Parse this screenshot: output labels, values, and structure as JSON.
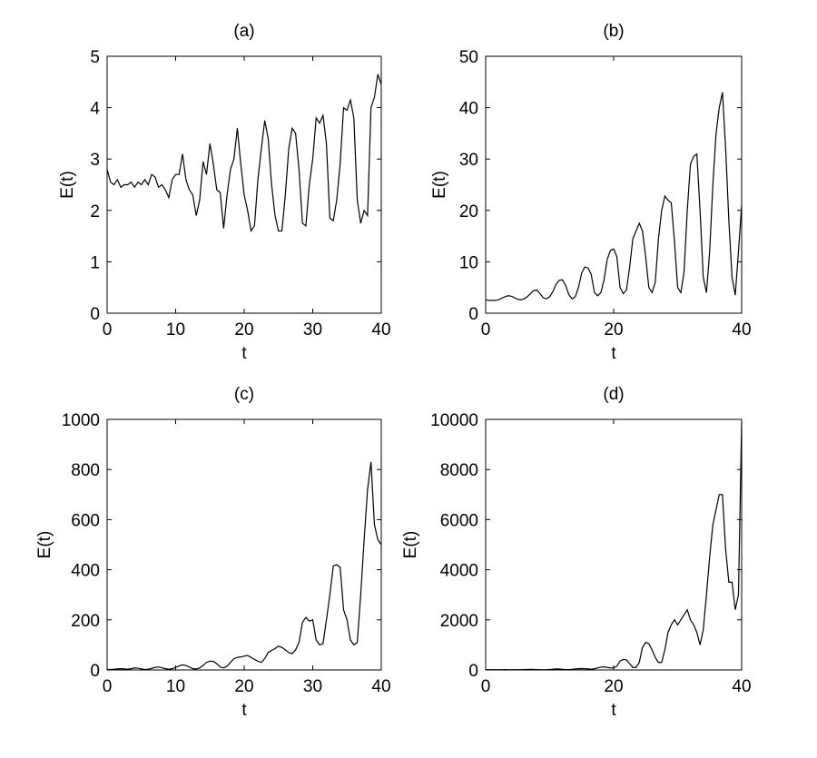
{
  "chart_data": [
    {
      "type": "line",
      "title": "(a)",
      "xlabel": "t",
      "ylabel": "E(t)",
      "color": "#000000",
      "xlim": [
        0,
        40
      ],
      "ylim": [
        0,
        5
      ],
      "xticks": [
        0,
        10,
        20,
        30,
        40
      ],
      "yticks": [
        0,
        1,
        2,
        3,
        4,
        5
      ],
      "x": [
        0,
        0.5,
        1,
        1.5,
        2,
        2.5,
        3,
        3.5,
        4,
        4.5,
        5,
        5.5,
        6,
        6.5,
        7,
        7.5,
        8,
        8.5,
        9,
        9.5,
        10,
        10.5,
        11,
        11.5,
        12,
        12.5,
        13,
        13.5,
        14,
        14.5,
        15,
        15.5,
        16,
        16.5,
        17,
        17.5,
        18,
        18.5,
        19,
        19.5,
        20,
        20.5,
        21,
        21.5,
        22,
        22.5,
        23,
        23.5,
        24,
        24.5,
        25,
        25.5,
        26,
        26.5,
        27,
        27.5,
        28,
        28.5,
        29,
        29.5,
        30,
        30.5,
        31,
        31.5,
        32,
        32.5,
        33,
        33.5,
        34,
        34.5,
        35,
        35.5,
        36,
        36.5,
        37,
        37.5,
        38,
        38.5,
        39,
        39.5,
        40
      ],
      "values": [
        2.8,
        2.55,
        2.5,
        2.6,
        2.45,
        2.5,
        2.5,
        2.55,
        2.45,
        2.55,
        2.5,
        2.6,
        2.5,
        2.7,
        2.65,
        2.45,
        2.5,
        2.4,
        2.25,
        2.6,
        2.7,
        2.7,
        3.1,
        2.6,
        2.4,
        2.3,
        1.9,
        2.2,
        2.95,
        2.7,
        3.3,
        2.9,
        2.4,
        2.35,
        1.65,
        2.3,
        2.8,
        3.0,
        3.6,
        2.9,
        2.3,
        2.0,
        1.6,
        1.7,
        2.6,
        3.2,
        3.75,
        3.4,
        2.5,
        1.9,
        1.6,
        1.6,
        2.3,
        3.2,
        3.6,
        3.5,
        2.8,
        1.75,
        1.7,
        2.5,
        3.0,
        3.8,
        3.7,
        3.85,
        3.3,
        1.85,
        1.8,
        2.2,
        2.9,
        4.0,
        3.95,
        4.15,
        3.8,
        2.2,
        1.75,
        2.0,
        1.9,
        4.0,
        4.2,
        4.65,
        4.45
      ]
    },
    {
      "type": "line",
      "title": "(b)",
      "xlabel": "t",
      "ylabel": "E(t)",
      "color": "#000000",
      "xlim": [
        0,
        40
      ],
      "ylim": [
        0,
        50
      ],
      "xticks": [
        0,
        20,
        40
      ],
      "yticks": [
        0,
        10,
        20,
        30,
        40,
        50
      ],
      "x": [
        0,
        0.5,
        1,
        1.5,
        2,
        2.5,
        3,
        3.5,
        4,
        4.5,
        5,
        5.5,
        6,
        6.5,
        7,
        7.5,
        8,
        8.5,
        9,
        9.5,
        10,
        10.5,
        11,
        11.5,
        12,
        12.5,
        13,
        13.5,
        14,
        14.5,
        15,
        15.5,
        16,
        16.5,
        17,
        17.5,
        18,
        18.5,
        19,
        19.5,
        20,
        20.5,
        21,
        21.5,
        22,
        22.5,
        23,
        23.5,
        24,
        24.5,
        25,
        25.5,
        26,
        26.5,
        27,
        27.5,
        28,
        28.5,
        29,
        29.5,
        30,
        30.5,
        31,
        31.5,
        32,
        32.5,
        33,
        33.5,
        34,
        34.5,
        35,
        35.5,
        36,
        36.5,
        37,
        37.5,
        38,
        38.5,
        39,
        39.5,
        40
      ],
      "values": [
        2.6,
        2.5,
        2.5,
        2.5,
        2.6,
        2.9,
        3.2,
        3.4,
        3.3,
        3.0,
        2.7,
        2.6,
        2.8,
        3.2,
        3.8,
        4.4,
        4.5,
        3.8,
        3.0,
        2.8,
        3.2,
        4.2,
        5.6,
        6.4,
        6.5,
        5.4,
        3.6,
        2.8,
        3.2,
        5.0,
        7.8,
        9.0,
        8.8,
        7.5,
        4.0,
        3.4,
        4.0,
        6.5,
        10.5,
        12.2,
        12.5,
        11.0,
        5.0,
        3.8,
        4.5,
        9.0,
        14.5,
        16.0,
        17.5,
        16.0,
        11.0,
        5.0,
        4.0,
        6.0,
        14.5,
        20.0,
        22.8,
        22.0,
        21.5,
        14.0,
        5.0,
        4.0,
        8.0,
        20.0,
        29.0,
        30.5,
        31.0,
        20.0,
        7.0,
        4.0,
        12.0,
        25.0,
        35.0,
        40.0,
        43.0,
        32.0,
        18.0,
        7.0,
        3.5,
        12.0,
        21.0
      ]
    },
    {
      "type": "line",
      "title": "(c)",
      "xlabel": "t",
      "ylabel": "E(t)",
      "color": "#000000",
      "xlim": [
        0,
        40
      ],
      "ylim": [
        0,
        1000
      ],
      "xticks": [
        0,
        10,
        20,
        30,
        40
      ],
      "yticks": [
        0,
        200,
        400,
        600,
        800,
        1000
      ],
      "x": [
        0,
        0.5,
        1,
        1.5,
        2,
        2.5,
        3,
        3.5,
        4,
        4.5,
        5,
        5.5,
        6,
        6.5,
        7,
        7.5,
        8,
        8.5,
        9,
        9.5,
        10,
        10.5,
        11,
        11.5,
        12,
        12.5,
        13,
        13.5,
        14,
        14.5,
        15,
        15.5,
        16,
        16.5,
        17,
        17.5,
        18,
        18.5,
        19,
        19.5,
        20,
        20.5,
        21,
        21.5,
        22,
        22.5,
        23,
        23.5,
        24,
        24.5,
        25,
        25.5,
        26,
        26.5,
        27,
        27.5,
        28,
        28.5,
        29,
        29.5,
        30,
        30.5,
        31,
        31.5,
        32,
        32.5,
        33,
        33.5,
        34,
        34.5,
        35,
        35.5,
        36,
        36.5,
        37,
        37.5,
        38,
        38.5,
        39,
        39.5,
        40
      ],
      "values": [
        2,
        2,
        3,
        4,
        5,
        4,
        3,
        5,
        8,
        7,
        4,
        2,
        3,
        6,
        10,
        12,
        9,
        5,
        3,
        5,
        10,
        16,
        20,
        18,
        12,
        5,
        4,
        8,
        18,
        30,
        35,
        34,
        25,
        12,
        8,
        15,
        30,
        45,
        50,
        52,
        55,
        58,
        50,
        42,
        35,
        30,
        45,
        70,
        78,
        85,
        95,
        90,
        80,
        70,
        65,
        80,
        110,
        190,
        210,
        195,
        200,
        120,
        100,
        105,
        200,
        300,
        415,
        420,
        410,
        240,
        200,
        120,
        100,
        110,
        300,
        520,
        720,
        830,
        580,
        520,
        500
      ]
    },
    {
      "type": "line",
      "title": "(d)",
      "xlabel": "t",
      "ylabel": "E(t)",
      "color": "#000000",
      "xlim": [
        0,
        40
      ],
      "ylim": [
        0,
        10000
      ],
      "xticks": [
        0,
        20,
        40
      ],
      "yticks": [
        0,
        2000,
        4000,
        6000,
        8000,
        10000
      ],
      "x": [
        0,
        0.5,
        1,
        1.5,
        2,
        2.5,
        3,
        3.5,
        4,
        4.5,
        5,
        5.5,
        6,
        6.5,
        7,
        7.5,
        8,
        8.5,
        9,
        9.5,
        10,
        10.5,
        11,
        11.5,
        12,
        12.5,
        13,
        13.5,
        14,
        14.5,
        15,
        15.5,
        16,
        16.5,
        17,
        17.5,
        18,
        18.5,
        19,
        19.5,
        20,
        20.5,
        21,
        21.5,
        22,
        22.5,
        23,
        23.5,
        24,
        24.5,
        25,
        25.5,
        26,
        26.5,
        27,
        27.5,
        28,
        28.5,
        29,
        29.5,
        30,
        30.5,
        31,
        31.5,
        32,
        32.5,
        33,
        33.5,
        34,
        34.5,
        35,
        35.5,
        36,
        36.5,
        37,
        37.5,
        38,
        38.5,
        39,
        39.5,
        40
      ],
      "values": [
        10,
        10,
        10,
        10,
        10,
        12,
        15,
        12,
        10,
        10,
        10,
        12,
        15,
        20,
        25,
        20,
        15,
        10,
        10,
        12,
        20,
        30,
        40,
        35,
        25,
        15,
        15,
        25,
        40,
        50,
        55,
        50,
        40,
        30,
        50,
        80,
        110,
        120,
        100,
        80,
        80,
        150,
        350,
        420,
        400,
        250,
        100,
        100,
        300,
        900,
        1100,
        1050,
        800,
        500,
        300,
        300,
        800,
        1500,
        1800,
        2000,
        1800,
        2000,
        2200,
        2400,
        2000,
        1800,
        1500,
        1000,
        1600,
        3000,
        4500,
        5800,
        6400,
        7000,
        7000,
        4800,
        3500,
        3500,
        2400,
        3000,
        9900
      ]
    }
  ]
}
